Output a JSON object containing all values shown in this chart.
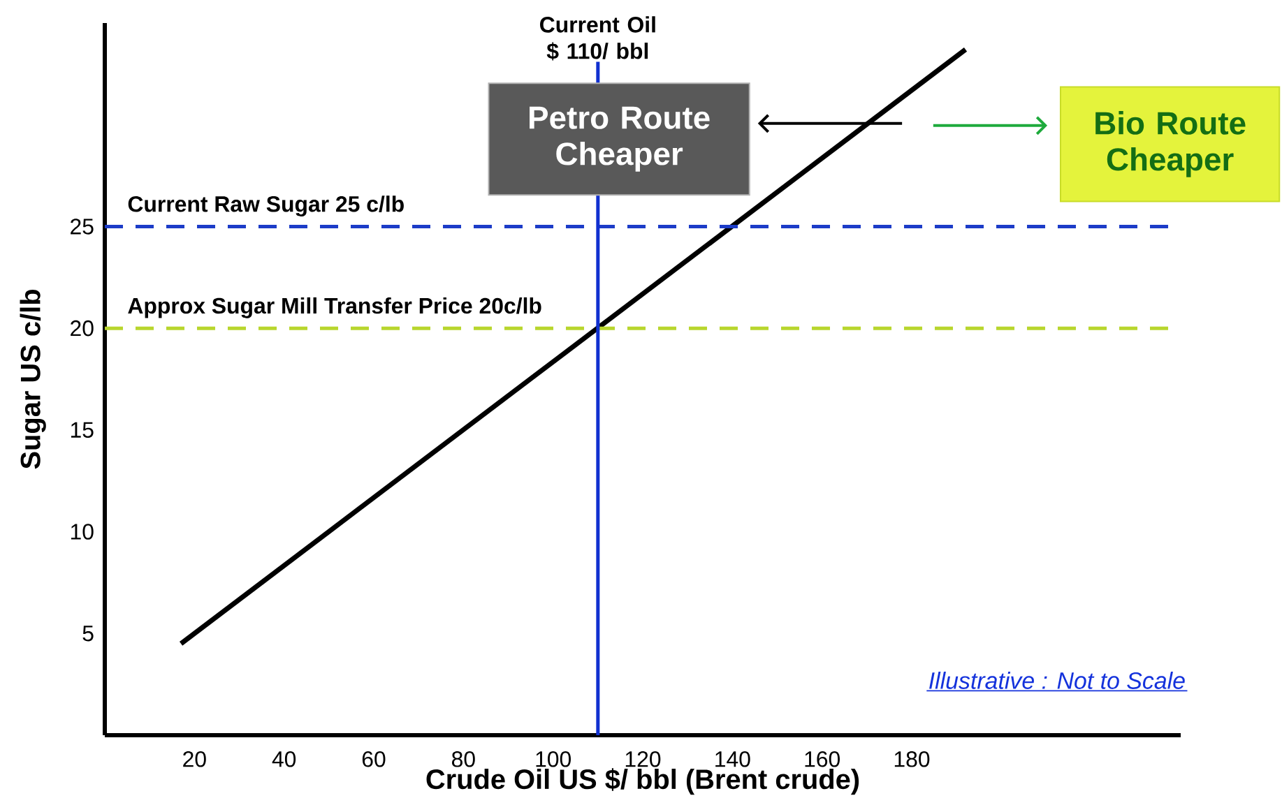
{
  "chart_data": {
    "type": "line",
    "xlabel": "Crude Oil  US $/ bbl (Brent crude)",
    "ylabel": "Sugar  US c/lb",
    "x": [
      17,
      192
    ],
    "values": [
      4.5,
      33.7
    ],
    "color": "#000000",
    "xlim": [
      0,
      240
    ],
    "ylim": [
      0,
      35
    ],
    "xticks": [
      20,
      40,
      60,
      80,
      100,
      120,
      140,
      160,
      180
    ],
    "yticks": [
      5,
      10,
      15,
      20,
      25
    ],
    "ref_lines": [
      {
        "axis": "y",
        "value": 25,
        "label": "Current Raw Sugar 25 c/lb",
        "color": "#1c3cc8",
        "line_style": "dashed"
      },
      {
        "axis": "y",
        "value": 20,
        "label": "Approx Sugar Mill Transfer Price 20c/lb",
        "color": "#b8d62e",
        "line_style": "dashed"
      },
      {
        "axis": "x",
        "value": 110,
        "label": "Current Oil $ 110/ bbl",
        "color": "#1030d0",
        "line_style": "solid"
      }
    ],
    "annotations": [
      "Petro Route Cheaper",
      "Bio Route Cheaper",
      "Illustrative :  Not to Scale"
    ]
  }
}
